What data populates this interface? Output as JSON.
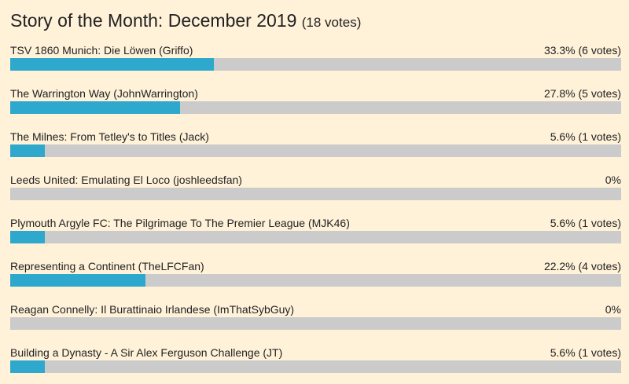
{
  "poll": {
    "title": "Story of the Month: December 2019",
    "total_votes": "(18 votes)",
    "colors": {
      "background": "#fff2d9",
      "bar_track": "#cbcbcb",
      "bar_fill": "#2ea8cc"
    },
    "options": [
      {
        "label": "TSV 1860 Munich: Die Löwen (Griffo)",
        "result": "33.3% (6 votes)",
        "fraction": 0.333
      },
      {
        "label": "The Warrington Way (JohnWarrington)",
        "result": "27.8% (5 votes)",
        "fraction": 0.278
      },
      {
        "label": "The Milnes: From Tetley's to Titles (Jack)",
        "result": "5.6% (1 votes)",
        "fraction": 0.056
      },
      {
        "label": "Leeds United: Emulating El Loco (joshleedsfan)",
        "result": "0%",
        "fraction": 0
      },
      {
        "label": "Plymouth Argyle FC: The Pilgrimage To The Premier League (MJK46)",
        "result": "5.6% (1 votes)",
        "fraction": 0.056
      },
      {
        "label": "Representing a Continent (TheLFCFan)",
        "result": "22.2% (4 votes)",
        "fraction": 0.222
      },
      {
        "label": "Reagan Connelly: Il Burattinaio Irlandese (ImThatSybGuy)",
        "result": "0%",
        "fraction": 0
      },
      {
        "label": "Building a Dynasty - A Sir Alex Ferguson Challenge (JT)",
        "result": "5.6% (1 votes)",
        "fraction": 0.056
      }
    ]
  }
}
